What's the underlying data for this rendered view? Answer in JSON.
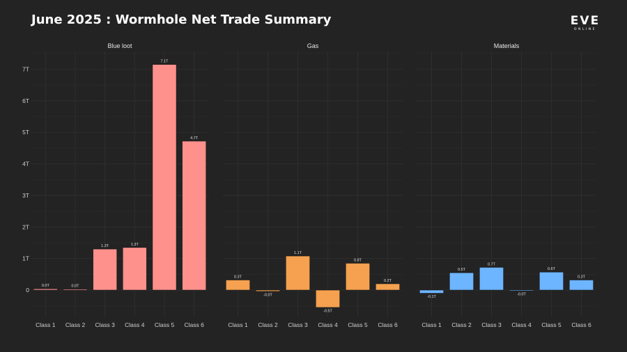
{
  "title": "June 2025 : Wormhole Net Trade Summary",
  "logo": {
    "text": "EVE",
    "subtext": "ONLINE"
  },
  "chart_data": {
    "type": "bar",
    "title": "June 2025 : Wormhole Net Trade Summary",
    "categories": [
      "Class 1",
      "Class 2",
      "Class 3",
      "Class 4",
      "Class 5",
      "Class 6"
    ],
    "ylim": [
      -1,
      7.4
    ],
    "yticks": [
      0,
      1,
      2,
      3,
      4,
      5,
      6,
      7
    ],
    "ytick_labels": [
      "0",
      "1T",
      "2T",
      "3T",
      "4T",
      "5T",
      "6T",
      "7T"
    ],
    "grid": true,
    "series": [
      {
        "name": "Blue loot",
        "color": "#ff918c",
        "values": [
          0.04,
          0.03,
          1.3,
          1.35,
          7.15,
          4.72
        ],
        "labels": [
          "0.0T",
          "0.0T",
          "1.3T",
          "1.3T",
          "7.1T",
          "4.7T"
        ]
      },
      {
        "name": "Gas",
        "color": "#f5a14f",
        "values": [
          0.32,
          -0.04,
          1.08,
          -0.55,
          0.85,
          0.2
        ],
        "labels": [
          "0.3T",
          "-0.0T",
          "1.1T",
          "-0.5T",
          "0.8T",
          "0.2T"
        ]
      },
      {
        "name": "Materials",
        "color": "#6db5ff",
        "values": [
          -0.1,
          0.55,
          0.72,
          -0.02,
          0.57,
          0.32
        ],
        "labels": [
          "-0.1T",
          "0.5T",
          "0.7T",
          "-0.0T",
          "0.6T",
          "0.3T"
        ]
      }
    ]
  }
}
